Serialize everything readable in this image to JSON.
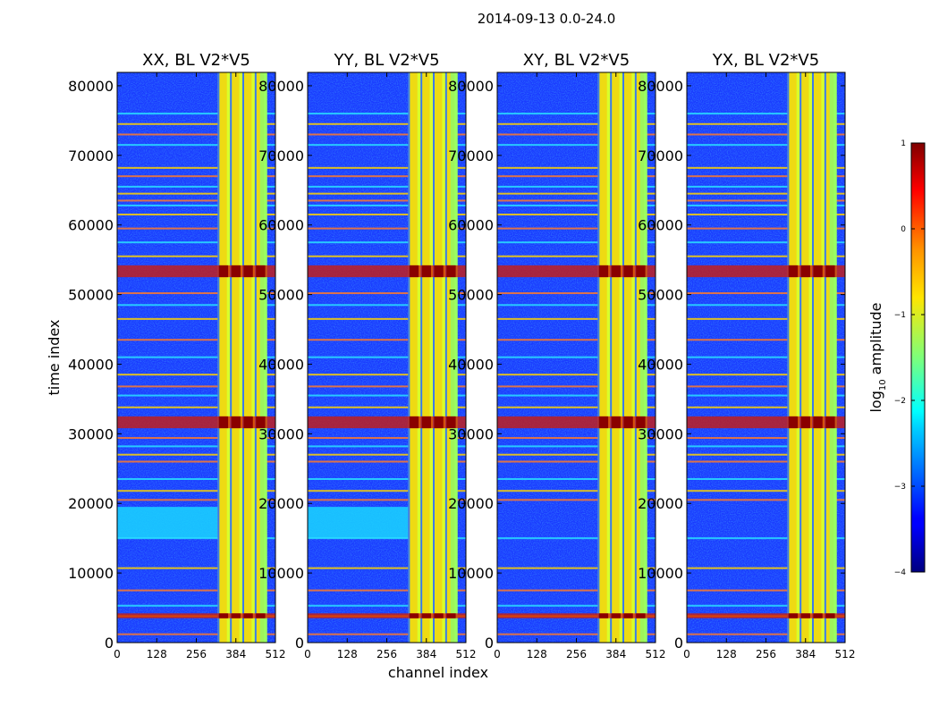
{
  "chart_data": {
    "type": "heatmap",
    "suptitle": "2014-09-13 0.0-24.0",
    "xlabel": "channel index",
    "ylabel": "time index",
    "xlim": [
      0,
      512
    ],
    "ylim": [
      0,
      81920
    ],
    "x_ticks": [
      "0",
      "128",
      "256",
      "384",
      "512"
    ],
    "x_tick_values": [
      0,
      128,
      256,
      384,
      512
    ],
    "y_ticks": [
      "0",
      "10000",
      "20000",
      "30000",
      "40000",
      "50000",
      "60000",
      "70000",
      "80000"
    ],
    "y_tick_values": [
      0,
      10000,
      20000,
      30000,
      40000,
      50000,
      60000,
      70000,
      80000
    ],
    "panels": [
      {
        "title": "XX, BL V2*V5",
        "polarization": "XX",
        "rfi_block_channels": [
          325,
          485
        ],
        "strong_rfi_rows": [
          [
            52500,
            54200
          ],
          [
            30800,
            32500
          ],
          [
            3500,
            4200
          ]
        ],
        "elevated_band_rows": [
          [
            15000,
            19500
          ]
        ]
      },
      {
        "title": "YY, BL V2*V5",
        "polarization": "YY",
        "rfi_block_channels": [
          325,
          485
        ],
        "strong_rfi_rows": [
          [
            52500,
            54200
          ],
          [
            30800,
            32500
          ],
          [
            3500,
            4200
          ]
        ],
        "elevated_band_rows": [
          [
            15000,
            19500
          ]
        ]
      },
      {
        "title": "XY, BL V2*V5",
        "polarization": "XY",
        "rfi_block_channels": [
          325,
          485
        ],
        "strong_rfi_rows": [
          [
            52500,
            54200
          ],
          [
            30800,
            32500
          ],
          [
            3500,
            4200
          ]
        ],
        "elevated_band_rows": []
      },
      {
        "title": "YX, BL V2*V5",
        "polarization": "YX",
        "rfi_block_channels": [
          325,
          485
        ],
        "strong_rfi_rows": [
          [
            52500,
            54200
          ],
          [
            30800,
            32500
          ],
          [
            3500,
            4200
          ]
        ],
        "elevated_band_rows": []
      }
    ],
    "horizontal_rfi_lines": [
      1200,
      3800,
      5300,
      7500,
      10700,
      15000,
      20500,
      21800,
      23500,
      26000,
      27000,
      28200,
      29400,
      33800,
      35500,
      36800,
      38500,
      41000,
      43500,
      46500,
      48500,
      50200,
      55500,
      57500,
      59500,
      61500,
      62800,
      63500,
      64500,
      65500,
      67000,
      68200,
      71500,
      73000,
      74500,
      76000
    ],
    "colorbar": {
      "label": "log",
      "label_sub": "10",
      "label_rest": " amplitude",
      "range": [
        -4,
        1
      ],
      "tick_values": [
        1,
        0,
        -1,
        -2,
        -3,
        -4
      ],
      "ticks": [
        "1",
        "0",
        "−1",
        "−2",
        "−3",
        "−4"
      ],
      "colormap": "jet"
    }
  }
}
